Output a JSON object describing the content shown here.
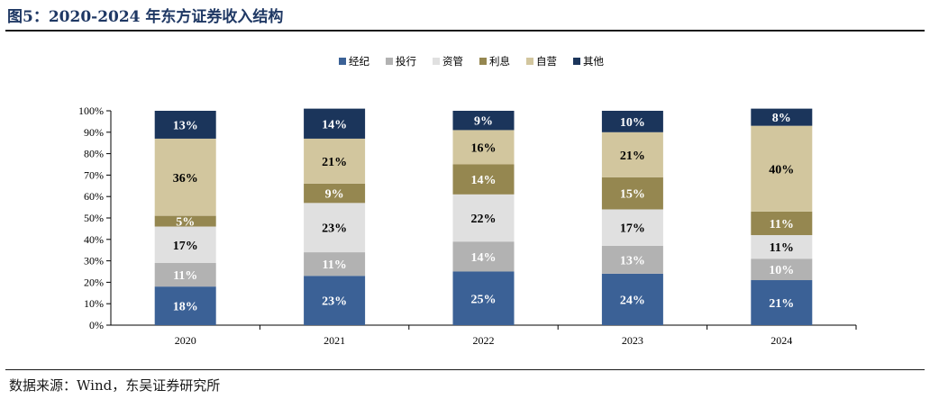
{
  "figure": {
    "title": "图5：2020-2024 年东方证券收入结构",
    "source": "数据来源：Wind，东吴证券研究所"
  },
  "chart_data": {
    "type": "bar",
    "stacked": true,
    "categories": [
      "2020",
      "2021",
      "2022",
      "2023",
      "2024"
    ],
    "y_ticks": [
      "0%",
      "10%",
      "20%",
      "30%",
      "40%",
      "50%",
      "60%",
      "70%",
      "80%",
      "90%",
      "100%"
    ],
    "ylim": [
      0,
      100
    ],
    "legend_position": "top-center",
    "series": [
      {
        "name": "经纪",
        "color": "#3b6196",
        "label_color": "#ffffff",
        "values": [
          18,
          23,
          25,
          24,
          21
        ]
      },
      {
        "name": "投行",
        "color": "#b2b2b2",
        "label_color": "#ffffff",
        "values": [
          11,
          11,
          14,
          13,
          10
        ]
      },
      {
        "name": "资管",
        "color": "#e0e0e0",
        "label_color": "#000000",
        "values": [
          17,
          23,
          22,
          17,
          11
        ]
      },
      {
        "name": "利息",
        "color": "#958750",
        "label_color": "#ffffff",
        "values": [
          5,
          9,
          14,
          15,
          11
        ]
      },
      {
        "name": "自营",
        "color": "#d2c69e",
        "label_color": "#000000",
        "values": [
          36,
          21,
          16,
          21,
          40
        ]
      },
      {
        "name": "其他",
        "color": "#1b355b",
        "label_color": "#ffffff",
        "values": [
          13,
          14,
          9,
          10,
          8
        ]
      }
    ]
  }
}
